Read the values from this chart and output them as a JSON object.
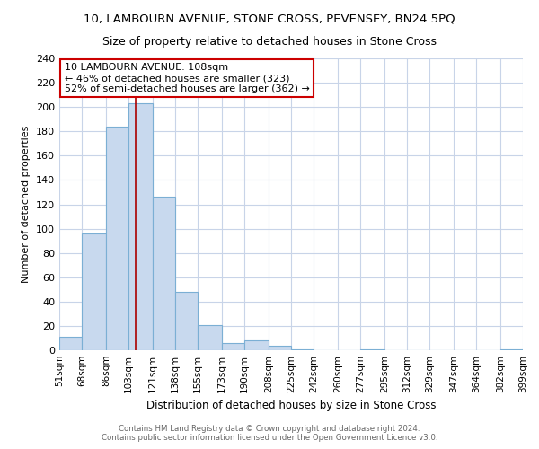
{
  "title": "10, LAMBOURN AVENUE, STONE CROSS, PEVENSEY, BN24 5PQ",
  "subtitle": "Size of property relative to detached houses in Stone Cross",
  "xlabel": "Distribution of detached houses by size in Stone Cross",
  "ylabel": "Number of detached properties",
  "bin_edges": [
    51,
    68,
    86,
    103,
    121,
    138,
    155,
    173,
    190,
    208,
    225,
    242,
    260,
    277,
    295,
    312,
    329,
    347,
    364,
    382,
    399
  ],
  "bin_labels": [
    "51sqm",
    "68sqm",
    "86sqm",
    "103sqm",
    "121sqm",
    "138sqm",
    "155sqm",
    "173sqm",
    "190sqm",
    "208sqm",
    "225sqm",
    "242sqm",
    "260sqm",
    "277sqm",
    "295sqm",
    "312sqm",
    "329sqm",
    "347sqm",
    "364sqm",
    "382sqm",
    "399sqm"
  ],
  "counts": [
    11,
    96,
    184,
    203,
    126,
    48,
    21,
    6,
    8,
    4,
    1,
    0,
    0,
    1,
    0,
    0,
    0,
    0,
    0,
    1
  ],
  "bar_color": "#c8d9ee",
  "bar_edge_color": "#7bafd4",
  "property_value": 108,
  "annotation_line1": "10 LAMBOURN AVENUE: 108sqm",
  "annotation_line2": "← 46% of detached houses are smaller (323)",
  "annotation_line3": "52% of semi-detached houses are larger (362) →",
  "vline_color": "#aa0000",
  "vline_x": 108,
  "ylim": [
    0,
    240
  ],
  "yticks": [
    0,
    20,
    40,
    60,
    80,
    100,
    120,
    140,
    160,
    180,
    200,
    220,
    240
  ],
  "background_color": "#ffffff",
  "grid_color": "#c8d4e8",
  "footer_text": "Contains HM Land Registry data © Crown copyright and database right 2024.\nContains public sector information licensed under the Open Government Licence v3.0.",
  "title_fontsize": 9.5,
  "subtitle_fontsize": 9,
  "xlabel_fontsize": 8.5,
  "ylabel_fontsize": 8,
  "annotation_fontsize": 8,
  "annotation_box_color": "#ffffff",
  "annotation_box_edgecolor": "#cc0000"
}
